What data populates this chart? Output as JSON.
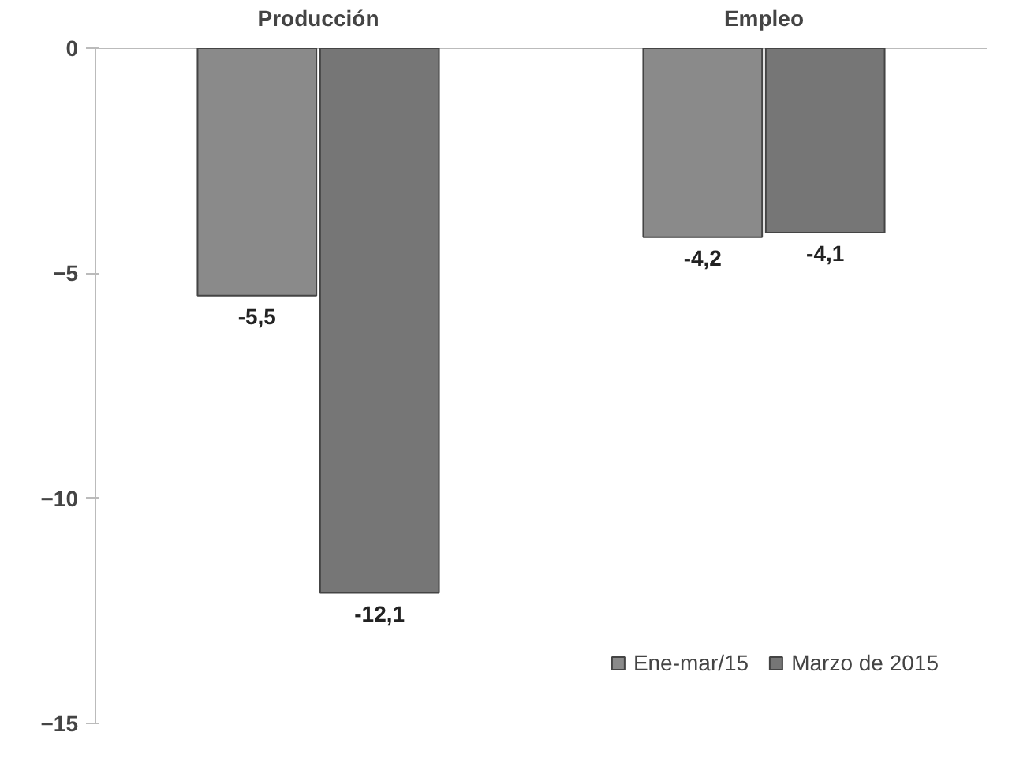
{
  "chart_data": {
    "type": "bar",
    "categories": [
      "Producción",
      "Empleo"
    ],
    "series": [
      {
        "name": "Ene-mar/15",
        "color": "#8a8a8a",
        "values": [
          -5.5,
          -4.2
        ],
        "value_labels": [
          "-5,5",
          "-4,2"
        ]
      },
      {
        "name": "Marzo de 2015",
        "color": "#767676",
        "values": [
          -12.1,
          -4.1
        ],
        "value_labels": [
          "-12,1",
          "-4,1"
        ]
      }
    ],
    "ylim": [
      -15,
      0
    ],
    "yticks": [
      0,
      -5,
      -10,
      -15
    ],
    "grid": false,
    "legend": "bottom right"
  }
}
